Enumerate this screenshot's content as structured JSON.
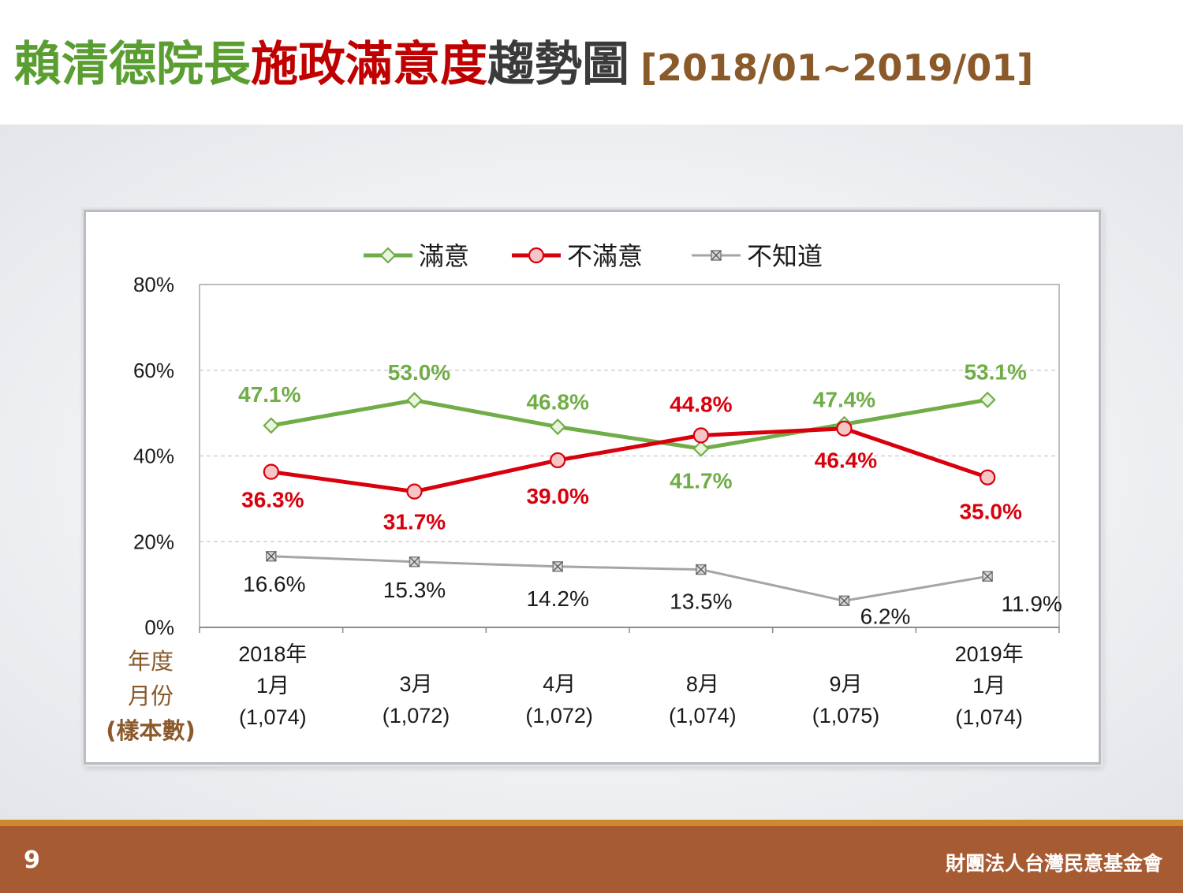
{
  "header": {
    "title_part1": "賴清德院長",
    "title_part2": "施政滿意度",
    "title_part3": "趨勢圖",
    "title_range": "[2018/01~2019/01]"
  },
  "footer": {
    "page_number": "9",
    "organization": "財團法人台灣民意基金會"
  },
  "colors": {
    "satisfied": "#70ad47",
    "dissatisfied": "#d9000d",
    "unknown": "#a5a5a5",
    "axis_label": "#8a5a2b"
  },
  "chart_data": {
    "type": "line",
    "title": "",
    "ylabel": "",
    "xlabel_lines": [
      "年度",
      "月份",
      "(樣本數)"
    ],
    "ylim": [
      0,
      80
    ],
    "yticks": [
      "0%",
      "20%",
      "40%",
      "60%",
      "80%"
    ],
    "grid": "horizontal dashed",
    "legend_position": "top-center",
    "categories": [
      [
        "2018年",
        "1月",
        "(1,074)"
      ],
      [
        "3月",
        "(1,072)"
      ],
      [
        "4月",
        "(1,072)"
      ],
      [
        "8月",
        "(1,074)"
      ],
      [
        "9月",
        "(1,075)"
      ],
      [
        "2019年",
        "1月",
        "(1,074)"
      ]
    ],
    "series": [
      {
        "name": "滿意",
        "values": [
          47.1,
          53.0,
          46.8,
          41.7,
          47.4,
          53.1
        ],
        "labels": [
          "47.1%",
          "53.0%",
          "46.8%",
          "41.7%",
          "47.4%",
          "53.1%"
        ],
        "marker": "diamond"
      },
      {
        "name": "不滿意",
        "values": [
          36.3,
          31.7,
          39.0,
          44.8,
          46.4,
          35.0
        ],
        "labels": [
          "36.3%",
          "31.7%",
          "39.0%",
          "44.8%",
          "46.4%",
          "35.0%"
        ],
        "marker": "circle"
      },
      {
        "name": "不知道",
        "values": [
          16.6,
          15.3,
          14.2,
          13.5,
          6.2,
          11.9
        ],
        "labels": [
          "16.6%",
          "15.3%",
          "14.2%",
          "13.5%",
          "6.2%",
          "11.9%"
        ],
        "marker": "x-square"
      }
    ]
  }
}
